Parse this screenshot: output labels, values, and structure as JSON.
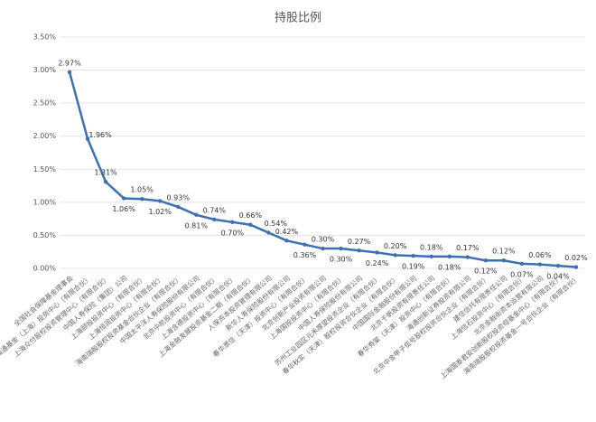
{
  "chart_data": {
    "type": "line",
    "title": "持股比例",
    "categories": [
      "全国社会保障基金理事会",
      "诚通基金（上海）投资中心（有限合伙）",
      "上海众付股权投资管理中心（有限合伙）",
      "中国人寿保险（集团）公司",
      "上海颐投投资中心（有限合伙）",
      "上海恒润投资中心（有限合伙）",
      "海南瑞殷股权投资基金合伙企业（有限合伙）",
      "中国太平洋人寿保险股份有限公司",
      "北京中航投资中心（有限合伙）",
      "上海含德投资中心（有限合伙）",
      "上海金融发展投资基金二期（有限合伙）",
      "人保资本投资管理有限公司",
      "新华人寿保险股份有限公司",
      "春华景信（天津）投资中心（有限合伙）",
      "北京创新产业投资有限公司",
      "上海国投投资中心（有限合伙）",
      "中国人寿保险股份有限公司",
      "苏州工业园区元禾厚望投资企业（有限合伙）",
      "春华秋实（天津）股权投资合伙企业（有限合伙）",
      "中国国际金融股份有限公司",
      "北京千帆投资有限责任公司",
      "春华秀棠（天津）投资中心（有限合伙）",
      "海通创新证券投资有限公司",
      "北京中金甲子伍号股权投资合伙企业（有限合伙）",
      "建信信托有限责任公司",
      "上海信石投资中心（有限合伙）",
      "北京金融街资本运营有限公司",
      "上海国泰君安创新股权投资母基金中心（有限合伙）",
      "海南瑞殷股权投资基金一号合伙企业（有限合伙）"
    ],
    "series": [
      {
        "name": "持股比例",
        "color": "#3d6fb5",
        "values": [
          2.97,
          1.96,
          1.31,
          1.06,
          1.05,
          1.02,
          0.93,
          0.81,
          0.74,
          0.7,
          0.66,
          0.54,
          0.42,
          0.36,
          0.3,
          0.3,
          0.27,
          0.24,
          0.2,
          0.19,
          0.18,
          0.18,
          0.17,
          0.12,
          0.12,
          0.07,
          0.06,
          0.04,
          0.02
        ],
        "value_labels": [
          "2.97%",
          "1.96%",
          "1.31%",
          "1.06%",
          "1.05%",
          "1.02%",
          "0.93%",
          "0.81%",
          "0.74%",
          "0.70%",
          "0.66%",
          "0.54%",
          "0.42%",
          "0.36%",
          "0.30%",
          "0.30%",
          "0.27%",
          "0.24%",
          "0.20%",
          "0.19%",
          "0.18%",
          "0.18%",
          "0.17%",
          "0.12%",
          "0.12%",
          "0.07%",
          "0.06%",
          "0.04%",
          "0.02%"
        ]
      }
    ],
    "ylim": [
      0,
      3.5
    ],
    "yticks": [
      {
        "value": 0,
        "label": "0.00%"
      },
      {
        "value": 0.5,
        "label": "0.50%"
      },
      {
        "value": 1,
        "label": "1.00%"
      },
      {
        "value": 1.5,
        "label": "1.50%"
      },
      {
        "value": 2,
        "label": "2.00%"
      },
      {
        "value": 2.5,
        "label": "2.50%"
      },
      {
        "value": 3,
        "label": "3.00%"
      },
      {
        "value": 3.5,
        "label": "3.50%"
      }
    ],
    "grid": true
  }
}
